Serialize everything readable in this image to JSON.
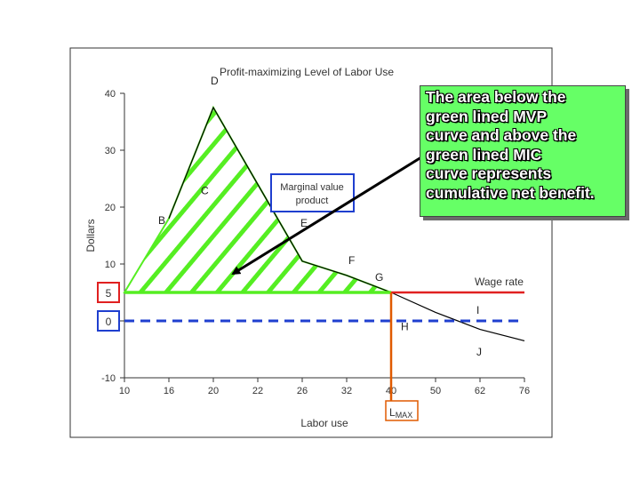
{
  "chart_data": {
    "type": "line",
    "title": "Profit-maximizing Level of Labor Use",
    "xlabel": "Labor use",
    "ylabel": "Dollars",
    "x_ticks": [
      "10",
      "16",
      "20",
      "22",
      "26",
      "32",
      "40",
      "50",
      "62",
      "76"
    ],
    "y_ticks": [
      -10,
      0,
      10,
      20,
      30,
      40
    ],
    "ylim": [
      -10,
      40
    ],
    "grid": false,
    "series": [
      {
        "name": "Marginal value product",
        "color": "#000000",
        "x": [
          "16",
          "20",
          "22",
          "26",
          "32",
          "40",
          "50",
          "62",
          "76"
        ],
        "y": [
          18,
          37.5,
          24,
          10.5,
          8,
          5,
          1.5,
          -1.5,
          -3.5
        ]
      },
      {
        "name": "Wage rate",
        "color": "#e02020",
        "x": [
          "10",
          "76"
        ],
        "y": [
          5,
          5
        ]
      },
      {
        "name": "",
        "color": "#1f3fcf",
        "style": "dashed",
        "x": [
          "10",
          "76"
        ],
        "y": [
          0,
          0
        ]
      }
    ],
    "point_labels": [
      {
        "label": "B",
        "x": "16",
        "y": 18
      },
      {
        "label": "C",
        "x": "20",
        "y": 21
      },
      {
        "label": "D",
        "x": "20",
        "y": 40
      },
      {
        "label": "E",
        "x": "26",
        "y": 17
      },
      {
        "label": "F",
        "x": "32",
        "y": 10
      },
      {
        "label": "G",
        "x": "40",
        "y": 7
      },
      {
        "label": "H",
        "x": "40",
        "y": 1
      },
      {
        "label": "I",
        "x": "62",
        "y": 3
      },
      {
        "label": "J",
        "x": "62",
        "y": -3
      }
    ],
    "vertical_marker": {
      "x": "40",
      "label": "L",
      "subscript": "MAX",
      "color": "#e05a00"
    },
    "boxed_y_labels": [
      {
        "value": "5",
        "color": "#e02020"
      },
      {
        "value": "0",
        "color": "#1f3fcf"
      }
    ],
    "series_labels": [
      {
        "text": "Marginal value product",
        "boxed": true,
        "box_color": "#1f3fcf"
      },
      {
        "text": "Wage rate"
      }
    ],
    "shaded_region": {
      "color": "#66ff33",
      "pattern": "diagonal-stripes",
      "meaning": "area between MVP and wage rate up to L MAX"
    }
  },
  "note": {
    "lines": [
      "The area below the",
      "green lined MVP",
      "curve and above the",
      "green lined MIC",
      "curve represents",
      "cumulative net benefit."
    ],
    "background": "#66ff66"
  }
}
